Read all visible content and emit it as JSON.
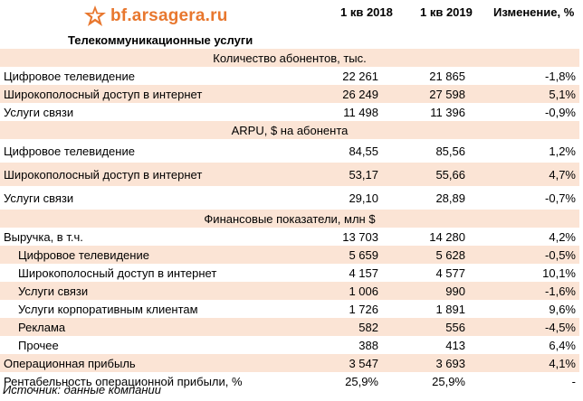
{
  "logo": {
    "text": "bf.arsagera.ru",
    "icon": "star-emblem-icon",
    "color": "#e8772e"
  },
  "title": "Телекоммуникационные услуги",
  "columns": [
    "1 кв 2018",
    "1 кв 2019",
    "Изменение, %"
  ],
  "colors": {
    "band": "#fbe4d5"
  },
  "sections": [
    {
      "label": "Количество абонентов, тыс.",
      "rows": [
        {
          "label": "Цифровое телевидение",
          "v2018": "22 261",
          "v2019": "21 865",
          "change": "-1,8%"
        },
        {
          "label": "Широкополосный доступ в интернет",
          "v2018": "26 249",
          "v2019": "27 598",
          "change": "5,1%"
        },
        {
          "label": "Услуги связи",
          "v2018": "11 498",
          "v2019": "11 396",
          "change": "-0,9%"
        }
      ]
    },
    {
      "label": "ARPU, $ на абонента",
      "rows": [
        {
          "label": "Цифровое телевидение",
          "v2018": "84,55",
          "v2019": "85,56",
          "change": "1,2%"
        },
        {
          "label": "Широкополосный доступ в интернет",
          "v2018": "53,17",
          "v2019": "55,66",
          "change": "4,7%"
        },
        {
          "label": "Услуги связи",
          "v2018": "29,10",
          "v2019": "28,89",
          "change": "-0,7%"
        }
      ]
    },
    {
      "label": "Финансовые показатели, млн $",
      "rows": [
        {
          "label": "Выручка, в т.ч.",
          "v2018": "13 703",
          "v2019": "14 280",
          "change": "4,2%"
        },
        {
          "label": "Цифровое телевидение",
          "v2018": "5 659",
          "v2019": "5 628",
          "change": "-0,5%"
        },
        {
          "label": "Широкополосный доступ в интернет",
          "v2018": "4 157",
          "v2019": "4 577",
          "change": "10,1%"
        },
        {
          "label": "Услуги связи",
          "v2018": "1 006",
          "v2019": "990",
          "change": "-1,6%"
        },
        {
          "label": "Услуги корпоративным клиентам",
          "v2018": "1 726",
          "v2019": "1 891",
          "change": "9,6%"
        },
        {
          "label": "Реклама",
          "v2018": "582",
          "v2019": "556",
          "change": "-4,5%"
        },
        {
          "label": "Прочее",
          "v2018": "388",
          "v2019": "413",
          "change": "6,4%"
        },
        {
          "label": "Операционная прибыль",
          "v2018": "3 547",
          "v2019": "3 693",
          "change": "4,1%"
        },
        {
          "label": "Рентабельность операционной прибыли, %",
          "v2018": "25,9%",
          "v2019": "25,9%",
          "change": "-"
        }
      ]
    }
  ],
  "source": "Источник: данные компании"
}
